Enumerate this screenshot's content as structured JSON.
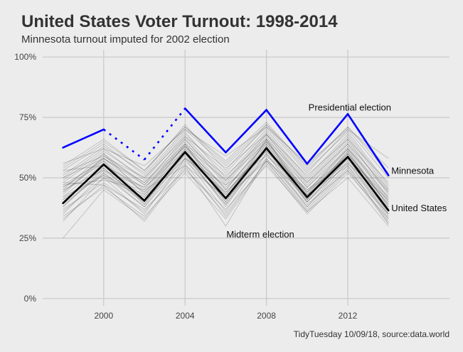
{
  "chart_data": {
    "type": "line",
    "title": "United States Voter Turnout: 1998-2014",
    "subtitle": "Minnesota turnout imputed for 2002 election",
    "caption": "TidyTuesday 10/09/18, source:data.world",
    "x": [
      1998,
      2000,
      2002,
      2004,
      2006,
      2008,
      2010,
      2012,
      2014
    ],
    "xlim": [
      1997,
      2017
    ],
    "x_ticks": [
      2000,
      2004,
      2008,
      2012
    ],
    "x_tick_labels": [
      "2000",
      "2004",
      "2008",
      "2012"
    ],
    "ylim": [
      -0.03,
      1.03
    ],
    "y_ticks": [
      0,
      0.25,
      0.5,
      0.75,
      1.0
    ],
    "y_tick_labels": [
      "0%",
      "25%",
      "50%",
      "75%",
      "100%"
    ],
    "grid": true,
    "annotations": [
      {
        "text": "Presidential election",
        "x": 2012.1,
        "y": 0.79
      },
      {
        "text": "Midterm election",
        "x": 2007.7,
        "y": 0.265
      }
    ],
    "series": [
      {
        "name": "United States",
        "color": "#000000",
        "values": [
          0.395,
          0.555,
          0.405,
          0.607,
          0.415,
          0.622,
          0.42,
          0.587,
          0.365
        ]
      },
      {
        "name": "Minnesota",
        "color": "#0000ff",
        "values": [
          0.625,
          0.7,
          0.575,
          0.787,
          0.605,
          0.781,
          0.558,
          0.764,
          0.51
        ],
        "imputed_points": [
          2002
        ]
      }
    ],
    "states": [
      [
        0.25,
        0.45,
        0.33,
        0.55,
        0.3,
        0.58,
        0.38,
        0.55,
        0.31
      ],
      [
        0.32,
        0.5,
        0.35,
        0.58,
        0.36,
        0.6,
        0.38,
        0.57,
        0.33
      ],
      [
        0.35,
        0.52,
        0.38,
        0.6,
        0.38,
        0.62,
        0.4,
        0.58,
        0.34
      ],
      [
        0.38,
        0.54,
        0.4,
        0.62,
        0.4,
        0.63,
        0.41,
        0.6,
        0.35
      ],
      [
        0.4,
        0.55,
        0.41,
        0.63,
        0.42,
        0.64,
        0.42,
        0.61,
        0.37
      ],
      [
        0.42,
        0.56,
        0.42,
        0.64,
        0.43,
        0.65,
        0.43,
        0.62,
        0.38
      ],
      [
        0.44,
        0.57,
        0.44,
        0.65,
        0.45,
        0.66,
        0.44,
        0.63,
        0.4
      ],
      [
        0.46,
        0.58,
        0.45,
        0.66,
        0.47,
        0.67,
        0.46,
        0.64,
        0.41
      ],
      [
        0.48,
        0.6,
        0.47,
        0.67,
        0.49,
        0.68,
        0.48,
        0.66,
        0.43
      ],
      [
        0.5,
        0.62,
        0.49,
        0.68,
        0.52,
        0.7,
        0.5,
        0.68,
        0.46
      ],
      [
        0.53,
        0.64,
        0.51,
        0.7,
        0.55,
        0.71,
        0.52,
        0.7,
        0.5
      ],
      [
        0.55,
        0.66,
        0.53,
        0.71,
        0.57,
        0.73,
        0.54,
        0.71,
        0.54
      ],
      [
        0.37,
        0.48,
        0.36,
        0.56,
        0.34,
        0.57,
        0.37,
        0.54,
        0.32
      ],
      [
        0.41,
        0.51,
        0.43,
        0.59,
        0.39,
        0.6,
        0.4,
        0.56,
        0.36
      ],
      [
        0.45,
        0.53,
        0.46,
        0.61,
        0.44,
        0.62,
        0.45,
        0.59,
        0.39
      ],
      [
        0.47,
        0.57,
        0.39,
        0.62,
        0.46,
        0.64,
        0.43,
        0.6,
        0.4
      ],
      [
        0.43,
        0.59,
        0.48,
        0.66,
        0.48,
        0.68,
        0.47,
        0.65,
        0.44
      ],
      [
        0.49,
        0.61,
        0.5,
        0.69,
        0.5,
        0.69,
        0.49,
        0.67,
        0.45
      ],
      [
        0.51,
        0.63,
        0.52,
        0.72,
        0.53,
        0.72,
        0.53,
        0.69,
        0.47
      ],
      [
        0.36,
        0.5,
        0.42,
        0.58,
        0.44,
        0.61,
        0.44,
        0.58,
        0.42
      ],
      [
        0.48,
        0.47,
        0.37,
        0.53,
        0.37,
        0.55,
        0.36,
        0.5,
        0.3
      ],
      [
        0.53,
        0.55,
        0.46,
        0.63,
        0.49,
        0.65,
        0.46,
        0.62,
        0.44
      ],
      [
        0.56,
        0.62,
        0.55,
        0.7,
        0.59,
        0.71,
        0.56,
        0.7,
        0.58
      ],
      [
        0.45,
        0.6,
        0.43,
        0.64,
        0.4,
        0.66,
        0.41,
        0.61,
        0.38
      ],
      [
        0.39,
        0.52,
        0.4,
        0.58,
        0.47,
        0.59,
        0.45,
        0.56,
        0.41
      ],
      [
        0.42,
        0.51,
        0.38,
        0.57,
        0.41,
        0.58,
        0.39,
        0.53,
        0.35
      ],
      [
        0.34,
        0.46,
        0.34,
        0.52,
        0.33,
        0.56,
        0.35,
        0.52,
        0.33
      ],
      [
        0.5,
        0.58,
        0.48,
        0.64,
        0.51,
        0.66,
        0.48,
        0.64,
        0.45
      ],
      [
        0.46,
        0.56,
        0.44,
        0.6,
        0.43,
        0.63,
        0.42,
        0.6,
        0.39
      ],
      [
        0.52,
        0.59,
        0.5,
        0.67,
        0.54,
        0.68,
        0.51,
        0.66,
        0.48
      ],
      [
        0.41,
        0.54,
        0.39,
        0.61,
        0.42,
        0.61,
        0.41,
        0.59,
        0.37
      ],
      [
        0.44,
        0.58,
        0.47,
        0.63,
        0.45,
        0.65,
        0.44,
        0.62,
        0.42
      ],
      [
        0.38,
        0.53,
        0.41,
        0.6,
        0.39,
        0.63,
        0.4,
        0.58,
        0.36
      ],
      [
        0.47,
        0.49,
        0.45,
        0.55,
        0.42,
        0.57,
        0.43,
        0.55,
        0.35
      ],
      [
        0.54,
        0.65,
        0.53,
        0.71,
        0.56,
        0.72,
        0.55,
        0.71,
        0.52
      ],
      [
        0.33,
        0.47,
        0.32,
        0.54,
        0.35,
        0.57,
        0.36,
        0.53,
        0.31
      ]
    ]
  }
}
